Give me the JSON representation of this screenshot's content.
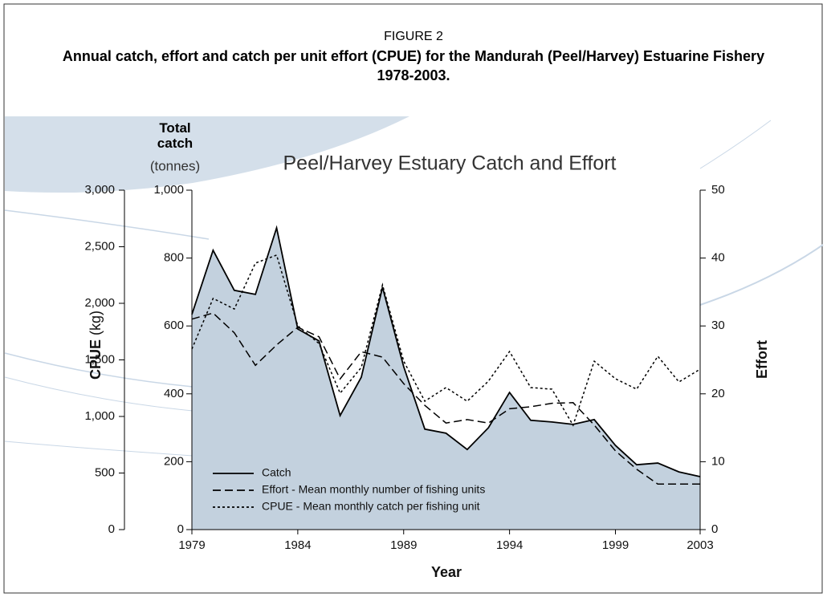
{
  "chart_data": {
    "type": "line",
    "figure_label": "FIGURE 2",
    "title": "Annual catch, effort and catch per unit effort (CPUE) for the Mandurah (Peel/Harvey) Estuarine Fishery 1978-2003.",
    "subtitle": "Peel/Harvey Estuary Catch and Effort",
    "x_label": "Year",
    "y_label": "Total catch",
    "y_unit": "(tonnes)",
    "y2_label": "Effort",
    "y3_label": "CPUE",
    "y3_unit": "(kg)",
    "x": [
      1979,
      1980,
      1981,
      1982,
      1983,
      1984,
      1985,
      1986,
      1987,
      1988,
      1989,
      1990,
      1991,
      1992,
      1993,
      1994,
      1995,
      1996,
      1997,
      1998,
      1999,
      2000,
      2001,
      2002,
      2003
    ],
    "xlim": [
      1979,
      2003
    ],
    "xticks": [
      1979,
      1984,
      1989,
      1994,
      1999,
      2003
    ],
    "ylim": [
      0,
      1000
    ],
    "yticks": [
      0,
      200,
      400,
      600,
      800,
      {
        "value": 1000,
        "label": "1,000"
      }
    ],
    "y2lim": [
      0,
      50
    ],
    "y2ticks": [
      0,
      10,
      20,
      30,
      40,
      50
    ],
    "y3lim": [
      0,
      3000
    ],
    "y3ticks": [
      0,
      500,
      {
        "value": 1000,
        "label": "1,000"
      },
      {
        "value": 1500,
        "label": "1,500"
      },
      {
        "value": 2000,
        "label": "2,000"
      },
      {
        "value": 2500,
        "label": "2,500"
      },
      {
        "value": 3000,
        "label": "3,000"
      }
    ],
    "legend": "lower left",
    "series": [
      {
        "name": "Catch",
        "color": "#000000",
        "fill": "#c3d1de",
        "style": "solid",
        "axis": "y",
        "values": [
          634,
          823,
          705,
          693,
          889,
          591,
          556,
          336,
          449,
          714,
          480,
          296,
          284,
          236,
          300,
          404,
          322,
          317,
          310,
          324,
          248,
          191,
          196,
          170,
          156
        ]
      },
      {
        "name": "Effort - Mean monthly number of fishing units",
        "color": "#000000",
        "style": "dashed",
        "axis": "y2",
        "values": [
          31.0,
          31.9,
          29.0,
          24.2,
          27.2,
          29.8,
          28.4,
          22.2,
          26.2,
          25.4,
          21.5,
          18.3,
          15.7,
          16.2,
          15.7,
          17.8,
          18.1,
          18.6,
          18.7,
          15.4,
          11.6,
          8.9,
          6.7,
          6.7,
          6.7
        ]
      },
      {
        "name": "CPUE - Mean monthly catch per fishing unit",
        "color": "#000000",
        "style": "dotted",
        "axis": "y3",
        "values": [
          1596,
          2043,
          1950,
          2355,
          2426,
          1801,
          1645,
          1206,
          1433,
          2163,
          1489,
          1135,
          1255,
          1135,
          1312,
          1574,
          1255,
          1241,
          922,
          1489,
          1333,
          1241,
          1532,
          1305,
          1418
        ]
      }
    ]
  }
}
